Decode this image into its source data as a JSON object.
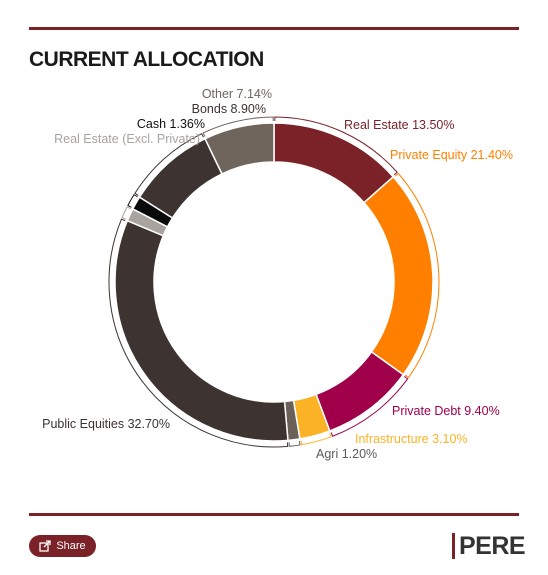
{
  "header": {
    "title": "CURRENT ALLOCATION"
  },
  "footer": {
    "share_label": "Share",
    "brand": "PERE"
  },
  "colors": {
    "accent": "#7b2128"
  },
  "icons": {
    "share": "share-icon"
  },
  "chart_data": {
    "type": "pie",
    "donut": true,
    "title": "CURRENT ALLOCATION",
    "series": [
      {
        "name": "Real Estate",
        "label": "Real Estate 13.50%",
        "value": 13.5,
        "color": "#7b2128"
      },
      {
        "name": "Private Equity",
        "label": "Private Equity 21.40%",
        "value": 21.4,
        "color": "#ff8000"
      },
      {
        "name": "Private Debt",
        "label": "Private Debt 9.40%",
        "value": 9.4,
        "color": "#a0004a"
      },
      {
        "name": "Infrastructure",
        "label": "Infrastructure 3.10%",
        "value": 3.1,
        "color": "#fbb325"
      },
      {
        "name": "Agri",
        "label": "Agri 1.20%",
        "value": 1.2,
        "color": "#6b6158"
      },
      {
        "name": "Public Equities",
        "label": "Public Equities 32.70%",
        "value": 32.7,
        "color": "#3d3330"
      },
      {
        "name": "Real Estate (Excl. Private)",
        "label": "Real Estate (Excl. Private)",
        "value": 1.3,
        "color": "#a8a39f"
      },
      {
        "name": "Cash",
        "label": "Cash 1.36%",
        "value": 1.36,
        "color": "#0a0a0a"
      },
      {
        "name": "Bonds",
        "label": "Bonds 8.90%",
        "value": 8.9,
        "color": "#3d3330"
      },
      {
        "name": "Other",
        "label": "Other 7.14%",
        "value": 7.14,
        "color": "#6f655c"
      }
    ]
  }
}
